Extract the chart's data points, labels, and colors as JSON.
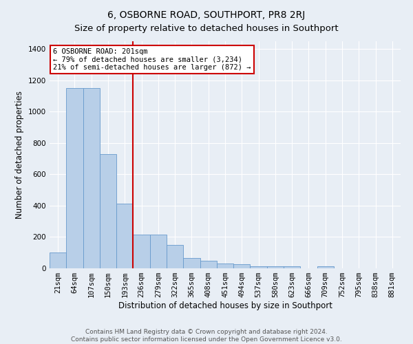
{
  "title": "6, OSBORNE ROAD, SOUTHPORT, PR8 2RJ",
  "subtitle": "Size of property relative to detached houses in Southport",
  "xlabel": "Distribution of detached houses by size in Southport",
  "ylabel": "Number of detached properties",
  "categories": [
    "21sqm",
    "64sqm",
    "107sqm",
    "150sqm",
    "193sqm",
    "236sqm",
    "279sqm",
    "322sqm",
    "365sqm",
    "408sqm",
    "451sqm",
    "494sqm",
    "537sqm",
    "580sqm",
    "623sqm",
    "666sqm",
    "709sqm",
    "752sqm",
    "795sqm",
    "838sqm",
    "881sqm"
  ],
  "values": [
    100,
    1150,
    1150,
    730,
    415,
    215,
    215,
    150,
    65,
    50,
    30,
    25,
    15,
    12,
    12,
    0,
    12,
    0,
    0,
    0,
    0
  ],
  "bar_color": "#b8cfe8",
  "bar_edge_color": "#6699cc",
  "property_line_color": "#cc0000",
  "property_line_index": 4,
  "annotation_text": "6 OSBORNE ROAD: 201sqm\n← 79% of detached houses are smaller (3,234)\n21% of semi-detached houses are larger (872) →",
  "annotation_box_color": "#ffffff",
  "annotation_box_edge_color": "#cc0000",
  "ylim": [
    0,
    1450
  ],
  "yticks": [
    0,
    200,
    400,
    600,
    800,
    1000,
    1200,
    1400
  ],
  "background_color": "#e8eef5",
  "plot_bg_color": "#e8eef5",
  "grid_color": "#ffffff",
  "footer_line1": "Contains HM Land Registry data © Crown copyright and database right 2024.",
  "footer_line2": "Contains public sector information licensed under the Open Government Licence v3.0.",
  "title_fontsize": 10,
  "xlabel_fontsize": 8.5,
  "ylabel_fontsize": 8.5,
  "tick_fontsize": 7.5,
  "footer_fontsize": 6.5
}
